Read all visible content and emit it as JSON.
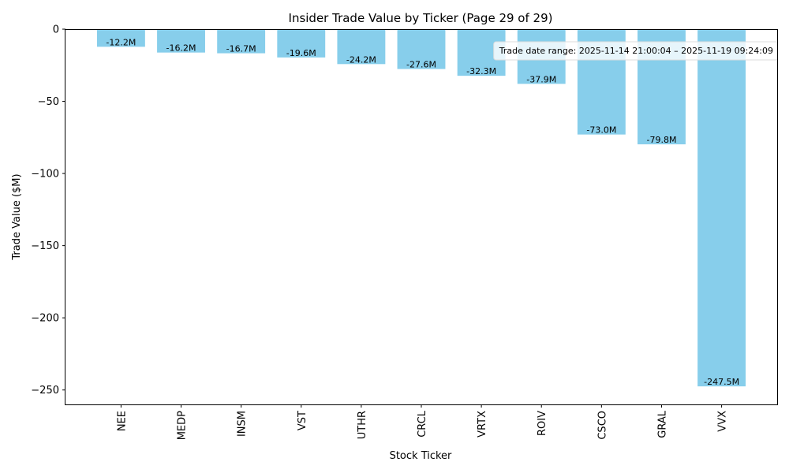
{
  "chart_data": {
    "type": "bar",
    "title": "Insider Trade Value by Ticker (Page 29 of 29)",
    "xlabel": "Stock Ticker",
    "ylabel": "Trade Value ($M)",
    "ylim": [
      -260,
      0
    ],
    "yticks": [
      0,
      -50,
      -100,
      -150,
      -200,
      -250
    ],
    "ytick_labels": [
      "0",
      "−50",
      "−100",
      "−150",
      "−200",
      "−250"
    ],
    "categories": [
      "NEE",
      "MEDP",
      "INSM",
      "VST",
      "UTHR",
      "CRCL",
      "VRTX",
      "ROIV",
      "CSCO",
      "GRAL",
      "VVX"
    ],
    "values": [
      -12.2,
      -16.2,
      -16.7,
      -19.6,
      -24.2,
      -27.6,
      -32.3,
      -37.9,
      -73.0,
      -79.8,
      -247.5
    ],
    "data_labels": [
      "-12.2M",
      "-16.2M",
      "-16.7M",
      "-19.6M",
      "-24.2M",
      "-27.6M",
      "-32.3M",
      "-37.9M",
      "-73.0M",
      "-79.8M",
      "-247.5M"
    ],
    "bar_color": "#87ceeb",
    "grid": false,
    "annotation": {
      "text": "Trade date range: 2025-11-14 21:00:04 – 2025-11-19 09:24:09",
      "placement": "top-right"
    }
  }
}
